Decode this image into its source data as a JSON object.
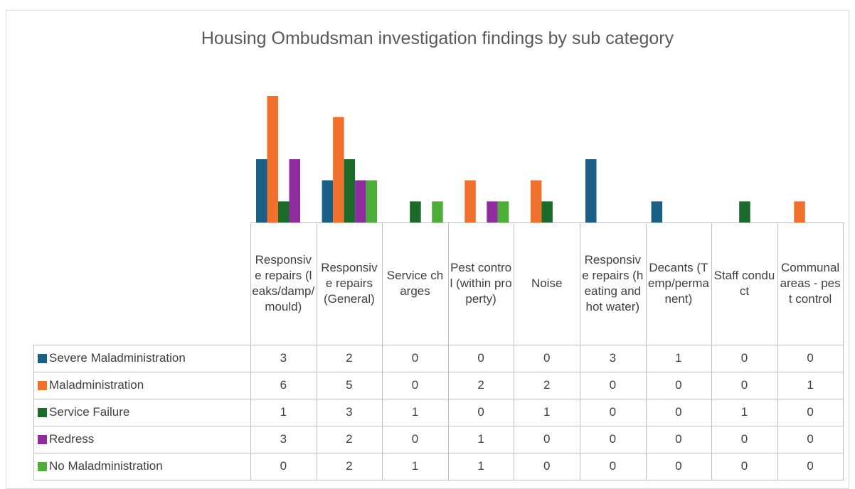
{
  "chart_data": {
    "type": "bar",
    "title": "Housing Ombudsman investigation findings by sub category",
    "categories": [
      "Responsive repairs (leaks/damp/mould)",
      "Responsive repairs (General)",
      "Service charges",
      "Pest control (within property)",
      "Noise",
      "Responsive repairs (heating and hot water)",
      "Decants (Temp/permanent)",
      "Staff conduct",
      "Communal areas - pest control"
    ],
    "series": [
      {
        "name": "Severe Maladministration",
        "color": "#1b5e86",
        "values": [
          3,
          2,
          0,
          0,
          0,
          3,
          1,
          0,
          0
        ]
      },
      {
        "name": "Maladministration",
        "color": "#f0702e",
        "values": [
          6,
          5,
          0,
          2,
          2,
          0,
          0,
          0,
          1
        ]
      },
      {
        "name": "Service Failure",
        "color": "#1a6b2c",
        "values": [
          1,
          3,
          1,
          0,
          1,
          0,
          0,
          1,
          0
        ]
      },
      {
        "name": "Redress",
        "color": "#8f2d9c",
        "values": [
          3,
          2,
          0,
          1,
          0,
          0,
          0,
          0,
          0
        ]
      },
      {
        "name": "No Maladministration",
        "color": "#4eae3a",
        "values": [
          0,
          2,
          1,
          1,
          0,
          0,
          0,
          0,
          0
        ]
      }
    ],
    "ylim": [
      0,
      6
    ]
  }
}
